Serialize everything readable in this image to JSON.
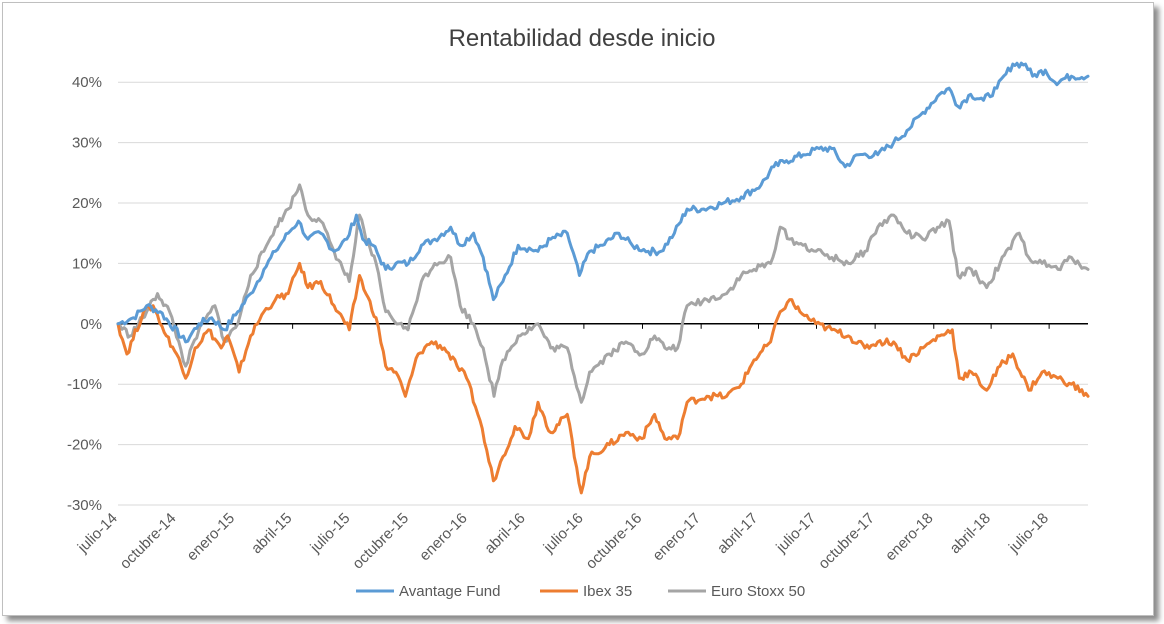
{
  "chart_data": {
    "type": "line",
    "title": "Rentabilidad desde inicio",
    "ylim": [
      -0.3,
      0.45
    ],
    "y_ticks": [
      0.4,
      0.3,
      0.2,
      0.1,
      0.0,
      -0.1,
      -0.2,
      -0.3
    ],
    "y_tick_labels": [
      "40%",
      "30%",
      "20%",
      "10%",
      "0%",
      "-10%",
      "-20%",
      "-30%"
    ],
    "x_range": [
      "2014-07-01",
      "2018-08-31"
    ],
    "x_tick_labels": [
      "julio-14",
      "octubre-14",
      "enero-15",
      "abril-15",
      "julio-15",
      "octubre-15",
      "enero-16",
      "abril-16",
      "julio-16",
      "octubre-16",
      "enero-17",
      "abril-17",
      "julio-17",
      "octubre-17",
      "enero-18",
      "abril-18",
      "julio-18"
    ],
    "gridlines": true,
    "legend_position": "bottom",
    "series": [
      {
        "name": "Avantage Fund",
        "color": "#5B9BD5",
        "points": [
          [
            "2014-07-01",
            0.0
          ],
          [
            "2014-07-25",
            0.01
          ],
          [
            "2014-08-15",
            0.03
          ],
          [
            "2014-09-05",
            0.02
          ],
          [
            "2014-10-15",
            -0.03
          ],
          [
            "2014-11-05",
            0.0
          ],
          [
            "2014-11-25",
            0.01
          ],
          [
            "2014-12-15",
            -0.01
          ],
          [
            "2015-01-05",
            0.02
          ],
          [
            "2015-01-25",
            0.05
          ],
          [
            "2015-02-15",
            0.09
          ],
          [
            "2015-03-05",
            0.12
          ],
          [
            "2015-03-25",
            0.15
          ],
          [
            "2015-04-10",
            0.17
          ],
          [
            "2015-04-25",
            0.14
          ],
          [
            "2015-05-15",
            0.15
          ],
          [
            "2015-06-05",
            0.12
          ],
          [
            "2015-06-25",
            0.14
          ],
          [
            "2015-07-10",
            0.18
          ],
          [
            "2015-07-20",
            0.14
          ],
          [
            "2015-08-05",
            0.13
          ],
          [
            "2015-08-25",
            0.09
          ],
          [
            "2015-09-10",
            0.1
          ],
          [
            "2015-09-30",
            0.1
          ],
          [
            "2015-10-20",
            0.13
          ],
          [
            "2015-11-10",
            0.14
          ],
          [
            "2015-12-05",
            0.16
          ],
          [
            "2015-12-20",
            0.13
          ],
          [
            "2016-01-10",
            0.15
          ],
          [
            "2016-01-25",
            0.11
          ],
          [
            "2016-02-10",
            0.04
          ],
          [
            "2016-02-25",
            0.07
          ],
          [
            "2016-03-20",
            0.13
          ],
          [
            "2016-04-20",
            0.12
          ],
          [
            "2016-05-10",
            0.14
          ],
          [
            "2016-06-05",
            0.15
          ],
          [
            "2016-06-24",
            0.08
          ],
          [
            "2016-07-10",
            0.12
          ],
          [
            "2016-07-30",
            0.13
          ],
          [
            "2016-08-25",
            0.15
          ],
          [
            "2016-09-15",
            0.13
          ],
          [
            "2016-10-10",
            0.12
          ],
          [
            "2016-10-30",
            0.12
          ],
          [
            "2016-11-20",
            0.15
          ],
          [
            "2016-12-10",
            0.19
          ],
          [
            "2017-01-05",
            0.19
          ],
          [
            "2017-02-05",
            0.2
          ],
          [
            "2017-03-05",
            0.21
          ],
          [
            "2017-04-05",
            0.23
          ],
          [
            "2017-04-25",
            0.26
          ],
          [
            "2017-05-15",
            0.27
          ],
          [
            "2017-06-10",
            0.28
          ],
          [
            "2017-07-05",
            0.29
          ],
          [
            "2017-07-25",
            0.29
          ],
          [
            "2017-08-15",
            0.26
          ],
          [
            "2017-09-05",
            0.28
          ],
          [
            "2017-10-05",
            0.28
          ],
          [
            "2017-10-30",
            0.3
          ],
          [
            "2017-11-20",
            0.32
          ],
          [
            "2017-12-15",
            0.35
          ],
          [
            "2018-01-10",
            0.38
          ],
          [
            "2018-01-25",
            0.39
          ],
          [
            "2018-02-08",
            0.36
          ],
          [
            "2018-02-28",
            0.38
          ],
          [
            "2018-03-20",
            0.37
          ],
          [
            "2018-04-10",
            0.39
          ],
          [
            "2018-05-05",
            0.43
          ],
          [
            "2018-05-25",
            0.43
          ],
          [
            "2018-06-05",
            0.41
          ],
          [
            "2018-06-25",
            0.42
          ],
          [
            "2018-07-10",
            0.4
          ],
          [
            "2018-08-05",
            0.41
          ],
          [
            "2018-08-31",
            0.41
          ]
        ]
      },
      {
        "name": "Ibex 35",
        "color": "#ED7D31",
        "points": [
          [
            "2014-07-01",
            0.0
          ],
          [
            "2014-07-15",
            -0.05
          ],
          [
            "2014-08-10",
            0.02
          ],
          [
            "2014-08-25",
            0.03
          ],
          [
            "2014-09-15",
            -0.02
          ],
          [
            "2014-10-01",
            -0.05
          ],
          [
            "2014-10-15",
            -0.09
          ],
          [
            "2014-10-30",
            -0.04
          ],
          [
            "2014-11-20",
            -0.01
          ],
          [
            "2014-12-10",
            -0.04
          ],
          [
            "2014-12-20",
            -0.02
          ],
          [
            "2015-01-07",
            -0.08
          ],
          [
            "2015-01-25",
            -0.02
          ],
          [
            "2015-02-15",
            0.02
          ],
          [
            "2015-03-05",
            0.04
          ],
          [
            "2015-03-25",
            0.05
          ],
          [
            "2015-04-12",
            0.1
          ],
          [
            "2015-04-25",
            0.06
          ],
          [
            "2015-05-15",
            0.07
          ],
          [
            "2015-06-05",
            0.03
          ],
          [
            "2015-06-29",
            -0.01
          ],
          [
            "2015-07-15",
            0.08
          ],
          [
            "2015-07-25",
            0.05
          ],
          [
            "2015-08-10",
            0.01
          ],
          [
            "2015-08-25",
            -0.07
          ],
          [
            "2015-09-10",
            -0.08
          ],
          [
            "2015-09-25",
            -0.12
          ],
          [
            "2015-10-15",
            -0.05
          ],
          [
            "2015-11-05",
            -0.03
          ],
          [
            "2015-11-25",
            -0.04
          ],
          [
            "2015-12-15",
            -0.07
          ],
          [
            "2015-12-30",
            -0.09
          ],
          [
            "2016-01-20",
            -0.16
          ],
          [
            "2016-02-10",
            -0.26
          ],
          [
            "2016-02-25",
            -0.22
          ],
          [
            "2016-03-15",
            -0.17
          ],
          [
            "2016-04-05",
            -0.19
          ],
          [
            "2016-04-20",
            -0.13
          ],
          [
            "2016-05-10",
            -0.18
          ],
          [
            "2016-06-05",
            -0.15
          ],
          [
            "2016-06-27",
            -0.28
          ],
          [
            "2016-07-10",
            -0.22
          ],
          [
            "2016-08-10",
            -0.2
          ],
          [
            "2016-09-05",
            -0.18
          ],
          [
            "2016-09-30",
            -0.19
          ],
          [
            "2016-10-20",
            -0.15
          ],
          [
            "2016-11-05",
            -0.19
          ],
          [
            "2016-11-25",
            -0.19
          ],
          [
            "2016-12-10",
            -0.13
          ],
          [
            "2017-01-10",
            -0.12
          ],
          [
            "2017-02-10",
            -0.12
          ],
          [
            "2017-03-05",
            -0.1
          ],
          [
            "2017-03-25",
            -0.06
          ],
          [
            "2017-04-20",
            -0.03
          ],
          [
            "2017-05-05",
            0.02
          ],
          [
            "2017-05-20",
            0.04
          ],
          [
            "2017-06-05",
            0.02
          ],
          [
            "2017-06-30",
            0.0
          ],
          [
            "2017-07-25",
            -0.01
          ],
          [
            "2017-08-20",
            -0.02
          ],
          [
            "2017-09-15",
            -0.04
          ],
          [
            "2017-10-05",
            -0.03
          ],
          [
            "2017-10-30",
            -0.03
          ],
          [
            "2017-11-20",
            -0.06
          ],
          [
            "2017-12-15",
            -0.04
          ],
          [
            "2018-01-10",
            -0.02
          ],
          [
            "2018-01-30",
            -0.01
          ],
          [
            "2018-02-10",
            -0.09
          ],
          [
            "2018-03-01",
            -0.08
          ],
          [
            "2018-03-25",
            -0.11
          ],
          [
            "2018-04-15",
            -0.07
          ],
          [
            "2018-05-05",
            -0.05
          ],
          [
            "2018-05-30",
            -0.11
          ],
          [
            "2018-06-20",
            -0.08
          ],
          [
            "2018-07-15",
            -0.09
          ],
          [
            "2018-08-05",
            -0.1
          ],
          [
            "2018-08-31",
            -0.12
          ]
        ]
      },
      {
        "name": "Euro Stoxx 50",
        "color": "#A5A5A5",
        "points": [
          [
            "2014-07-01",
            0.0
          ],
          [
            "2014-07-20",
            -0.02
          ],
          [
            "2014-08-15",
            0.02
          ],
          [
            "2014-09-01",
            0.05
          ],
          [
            "2014-09-20",
            0.02
          ],
          [
            "2014-10-15",
            -0.07
          ],
          [
            "2014-11-05",
            -0.01
          ],
          [
            "2014-11-30",
            0.03
          ],
          [
            "2014-12-15",
            -0.03
          ],
          [
            "2015-01-05",
            0.0
          ],
          [
            "2015-01-25",
            0.08
          ],
          [
            "2015-02-15",
            0.12
          ],
          [
            "2015-03-05",
            0.16
          ],
          [
            "2015-03-25",
            0.19
          ],
          [
            "2015-04-12",
            0.23
          ],
          [
            "2015-04-25",
            0.18
          ],
          [
            "2015-05-15",
            0.17
          ],
          [
            "2015-06-05",
            0.12
          ],
          [
            "2015-06-29",
            0.07
          ],
          [
            "2015-07-15",
            0.18
          ],
          [
            "2015-07-25",
            0.14
          ],
          [
            "2015-08-10",
            0.1
          ],
          [
            "2015-08-25",
            0.02
          ],
          [
            "2015-09-15",
            0.0
          ],
          [
            "2015-09-29",
            -0.01
          ],
          [
            "2015-10-20",
            0.07
          ],
          [
            "2015-11-10",
            0.1
          ],
          [
            "2015-12-05",
            0.11
          ],
          [
            "2015-12-20",
            0.03
          ],
          [
            "2016-01-10",
            0.0
          ],
          [
            "2016-01-25",
            -0.04
          ],
          [
            "2016-02-11",
            -0.12
          ],
          [
            "2016-02-25",
            -0.06
          ],
          [
            "2016-03-20",
            -0.02
          ],
          [
            "2016-04-20",
            0.0
          ],
          [
            "2016-05-10",
            -0.04
          ],
          [
            "2016-06-05",
            -0.04
          ],
          [
            "2016-06-27",
            -0.13
          ],
          [
            "2016-07-10",
            -0.08
          ],
          [
            "2016-08-10",
            -0.05
          ],
          [
            "2016-09-05",
            -0.03
          ],
          [
            "2016-09-30",
            -0.05
          ],
          [
            "2016-10-20",
            -0.02
          ],
          [
            "2016-11-05",
            -0.04
          ],
          [
            "2016-11-25",
            -0.04
          ],
          [
            "2016-12-10",
            0.03
          ],
          [
            "2017-01-10",
            0.04
          ],
          [
            "2017-02-10",
            0.05
          ],
          [
            "2017-03-05",
            0.08
          ],
          [
            "2017-03-25",
            0.09
          ],
          [
            "2017-04-20",
            0.1
          ],
          [
            "2017-05-05",
            0.16
          ],
          [
            "2017-05-20",
            0.14
          ],
          [
            "2017-06-10",
            0.13
          ],
          [
            "2017-06-30",
            0.12
          ],
          [
            "2017-07-25",
            0.11
          ],
          [
            "2017-08-20",
            0.1
          ],
          [
            "2017-09-15",
            0.12
          ],
          [
            "2017-10-05",
            0.16
          ],
          [
            "2017-10-30",
            0.18
          ],
          [
            "2017-11-20",
            0.15
          ],
          [
            "2017-12-15",
            0.14
          ],
          [
            "2018-01-10",
            0.16
          ],
          [
            "2018-01-25",
            0.17
          ],
          [
            "2018-02-08",
            0.08
          ],
          [
            "2018-03-01",
            0.09
          ],
          [
            "2018-03-25",
            0.06
          ],
          [
            "2018-04-15",
            0.1
          ],
          [
            "2018-05-15",
            0.15
          ],
          [
            "2018-05-30",
            0.11
          ],
          [
            "2018-06-20",
            0.1
          ],
          [
            "2018-07-15",
            0.09
          ],
          [
            "2018-08-05",
            0.11
          ],
          [
            "2018-08-31",
            0.09
          ]
        ]
      }
    ]
  }
}
